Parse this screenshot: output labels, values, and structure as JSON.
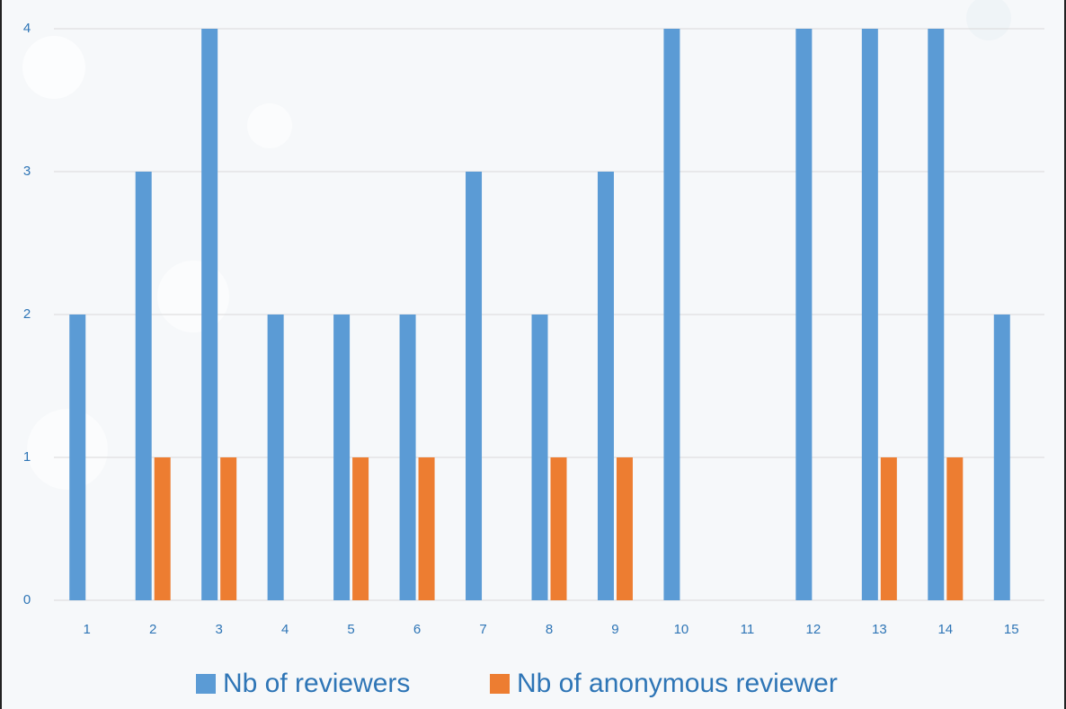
{
  "chart_data": {
    "type": "bar",
    "categories": [
      "1",
      "2",
      "3",
      "4",
      "5",
      "6",
      "7",
      "8",
      "9",
      "10",
      "11",
      "12",
      "13",
      "14",
      "15"
    ],
    "series": [
      {
        "name": "Nb of reviewers",
        "color": "#5b9bd5",
        "values": [
          2,
          3,
          4,
          2,
          2,
          2,
          3,
          2,
          3,
          4,
          0,
          4,
          4,
          4,
          2
        ]
      },
      {
        "name": "Nb of anonymous reviewer",
        "color": "#ed7d31",
        "values": [
          0,
          1,
          1,
          0,
          1,
          1,
          0,
          1,
          1,
          0,
          0,
          0,
          1,
          1,
          0
        ]
      }
    ],
    "ylim": [
      0,
      4
    ],
    "yticks": [
      0,
      1,
      2,
      3,
      4
    ],
    "grid": true,
    "legend": "bottom"
  }
}
